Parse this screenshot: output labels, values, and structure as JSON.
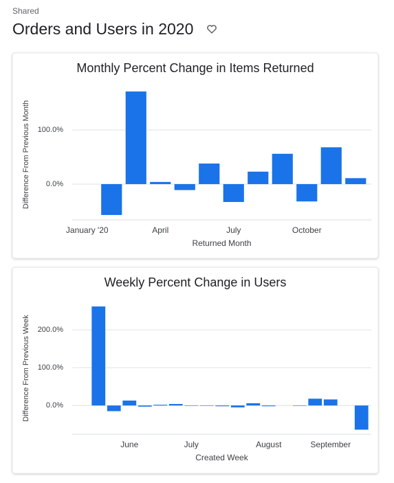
{
  "header": {
    "label": "Shared",
    "title": "Orders and Users in 2020"
  },
  "chart_data": [
    {
      "type": "bar",
      "title": "Monthly Percent Change in Items Returned",
      "x_label": "Returned Month",
      "y_label": "Difference From Previous Month",
      "categories": [
        "January '20",
        null,
        null,
        "April",
        null,
        null,
        "July",
        null,
        null,
        "October",
        null,
        null
      ],
      "values": [
        null,
        -57,
        171,
        4,
        -11,
        38,
        -33,
        23,
        56,
        -32,
        68,
        11
      ],
      "color": "#1a73e8",
      "ylim": [
        -66,
        175
      ],
      "yticks": [
        {
          "value": 0,
          "label": "0.0%"
        },
        {
          "value": 100,
          "label": "100.0%"
        }
      ],
      "grid": true
    },
    {
      "type": "bar",
      "title": "Weekly Percent Change in Users",
      "x_label": "Created Week",
      "y_label": "Difference From Previous Week",
      "categories": [
        null,
        null,
        "June",
        null,
        null,
        null,
        "July",
        null,
        null,
        null,
        null,
        "August",
        null,
        null,
        null,
        "September",
        null,
        null
      ],
      "values": [
        262,
        -15,
        13,
        -3,
        2,
        4,
        -1,
        -1,
        -2,
        -5,
        6,
        -2,
        0,
        -1,
        18,
        16,
        0,
        -64
      ],
      "color": "#1a73e8",
      "ylim": [
        -76,
        273
      ],
      "yticks": [
        {
          "value": 0,
          "label": "0.0%"
        },
        {
          "value": 100,
          "label": "100.0%"
        },
        {
          "value": 200,
          "label": "200.0%"
        }
      ],
      "grid": true
    }
  ]
}
